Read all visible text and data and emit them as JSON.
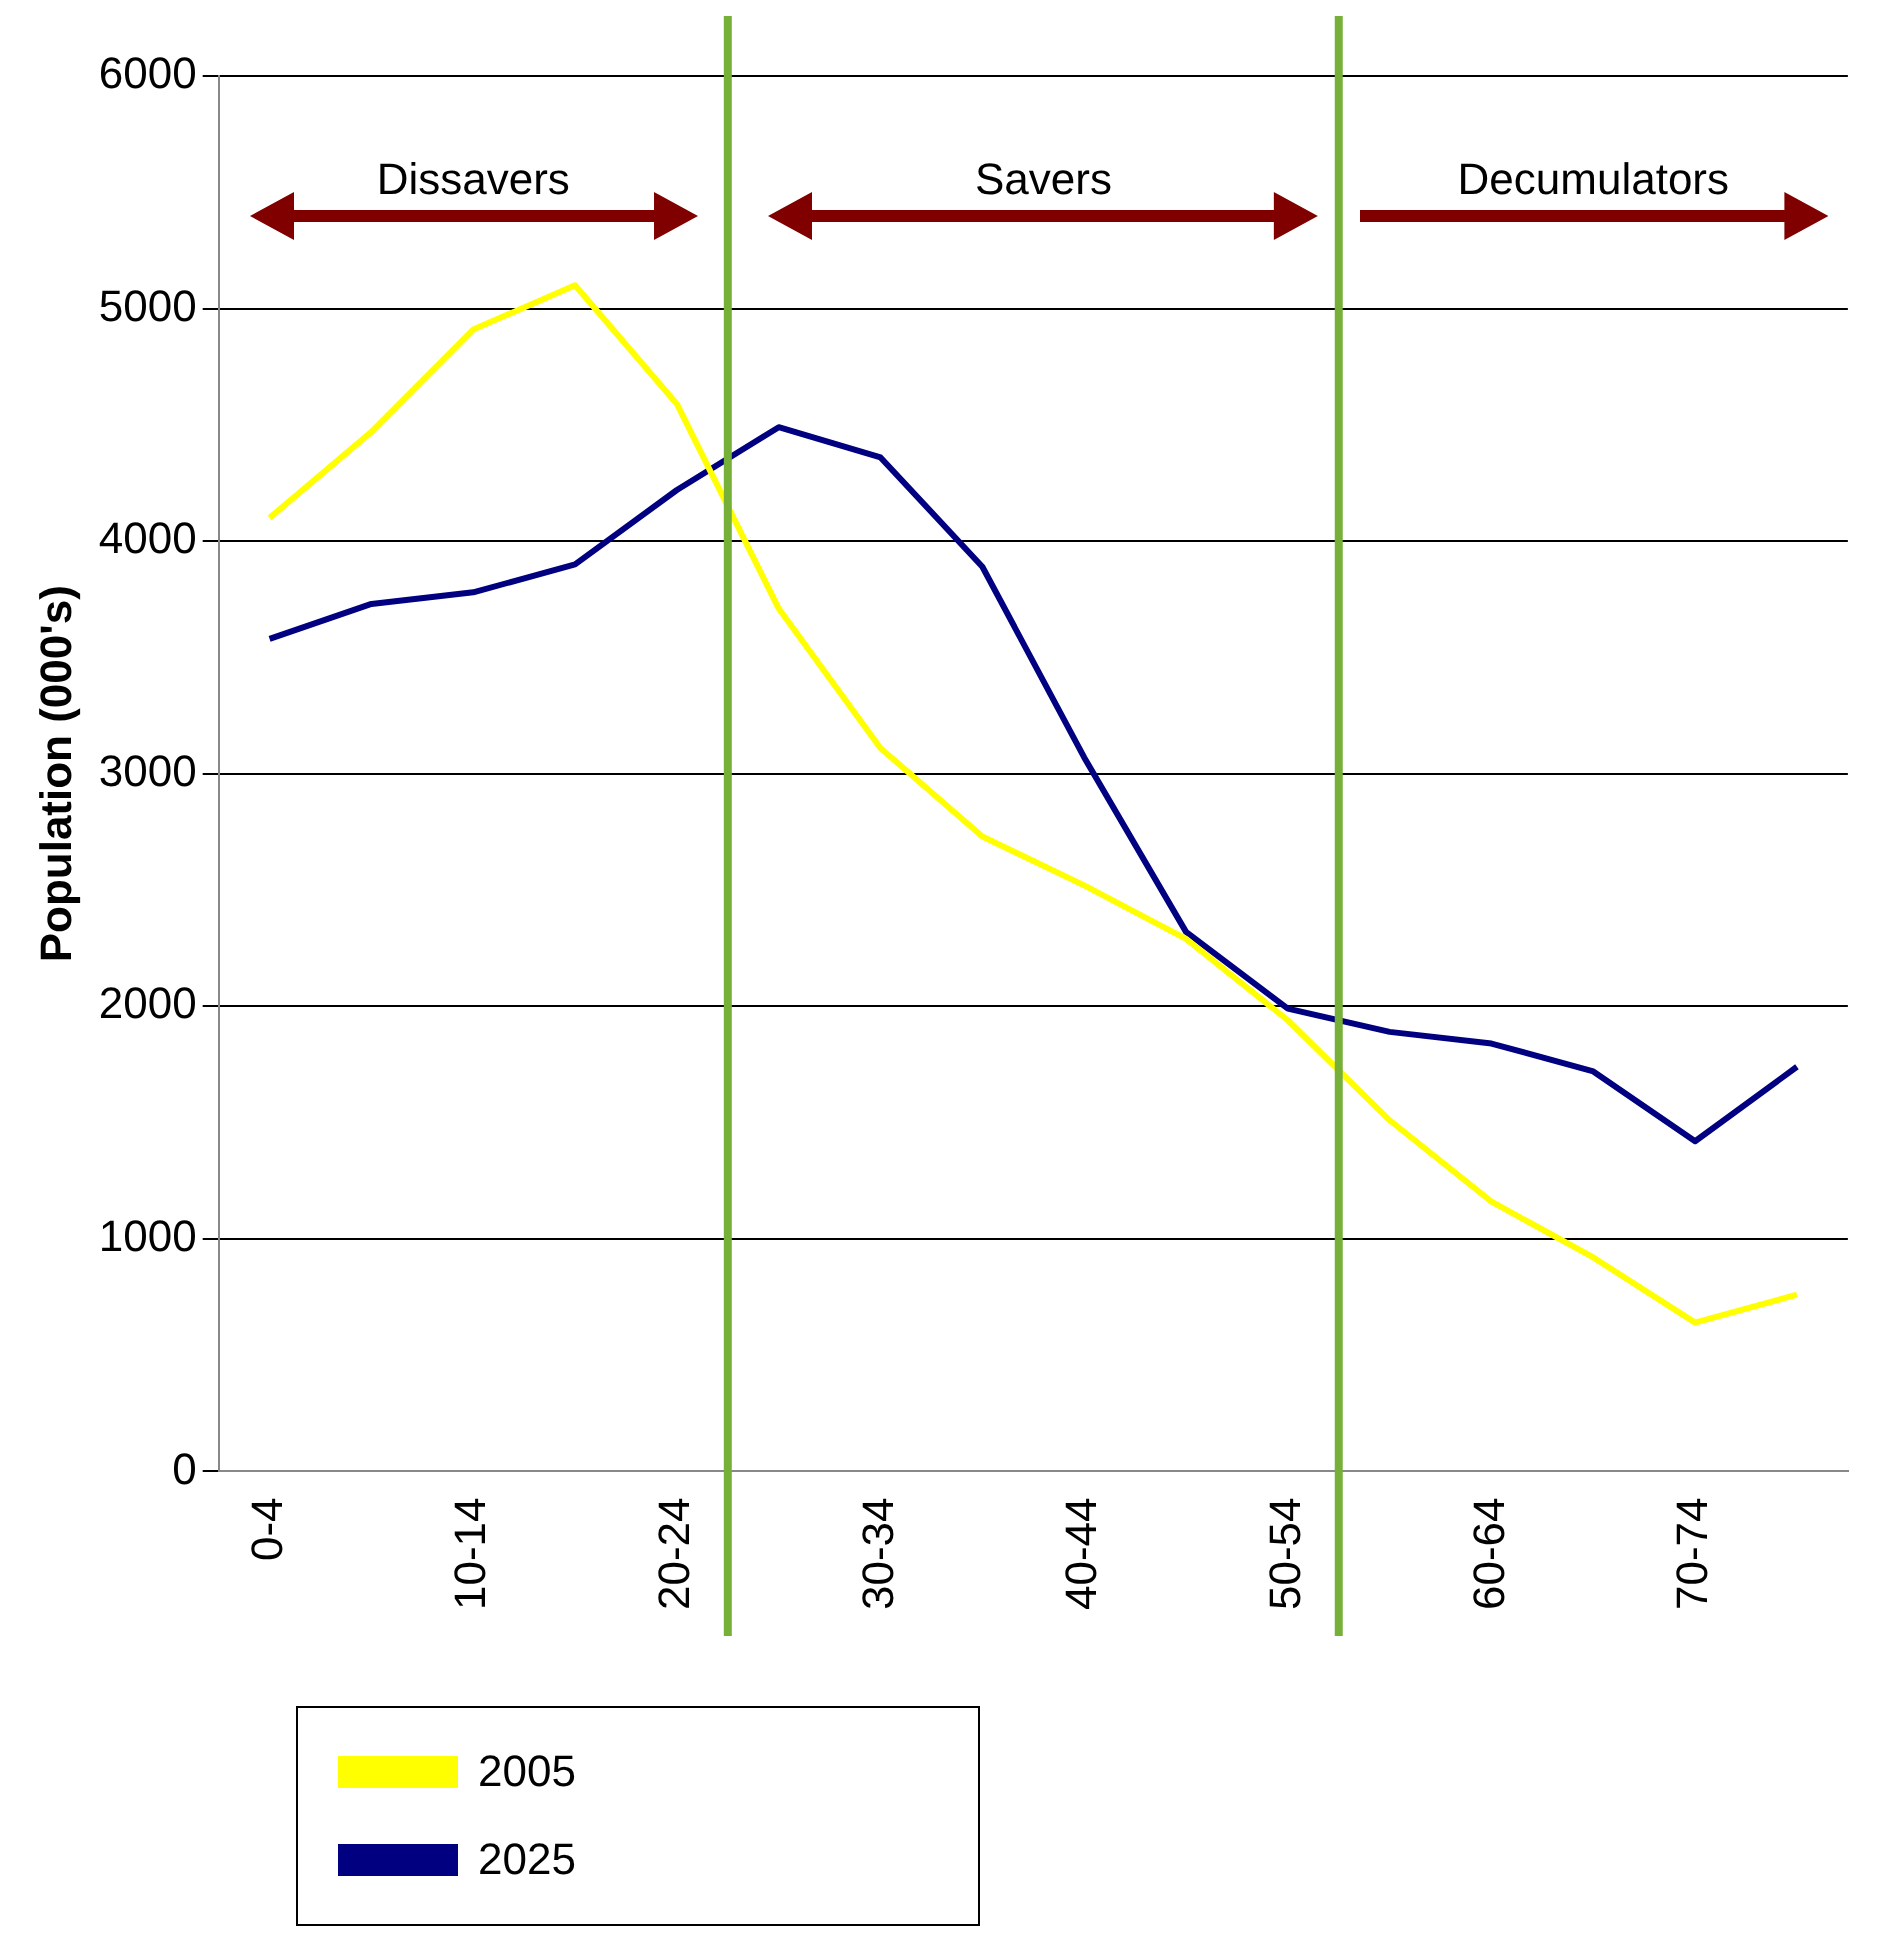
{
  "chart_data": {
    "type": "line",
    "ylabel": "Population (000's)",
    "categories": [
      "0-4",
      null,
      "10-14",
      null,
      "20-24",
      null,
      "30-34",
      null,
      "40-44",
      null,
      "50-54",
      null,
      "60-64",
      null,
      "70-74",
      null
    ],
    "series": [
      {
        "name": "2005",
        "color": "#ffff00",
        "values": [
          4100,
          4470,
          4910,
          5100,
          4590,
          3710,
          3110,
          2730,
          2520,
          2290,
          1940,
          1510,
          1160,
          920,
          640,
          760
        ]
      },
      {
        "name": "2025",
        "color": "#000080",
        "values": [
          3580,
          3730,
          3780,
          3900,
          4220,
          4490,
          4360,
          3890,
          3070,
          2320,
          1990,
          1890,
          1840,
          1720,
          1420,
          1740
        ]
      }
    ],
    "ylim": [
      0,
      6000
    ],
    "yticks": [
      0,
      1000,
      2000,
      3000,
      4000,
      5000,
      6000
    ],
    "grid": "y",
    "legend": "bottom left",
    "marker": "none",
    "line_style": "solid",
    "annotations": [
      "Dissavers",
      "Savers",
      "Decumulators"
    ]
  }
}
